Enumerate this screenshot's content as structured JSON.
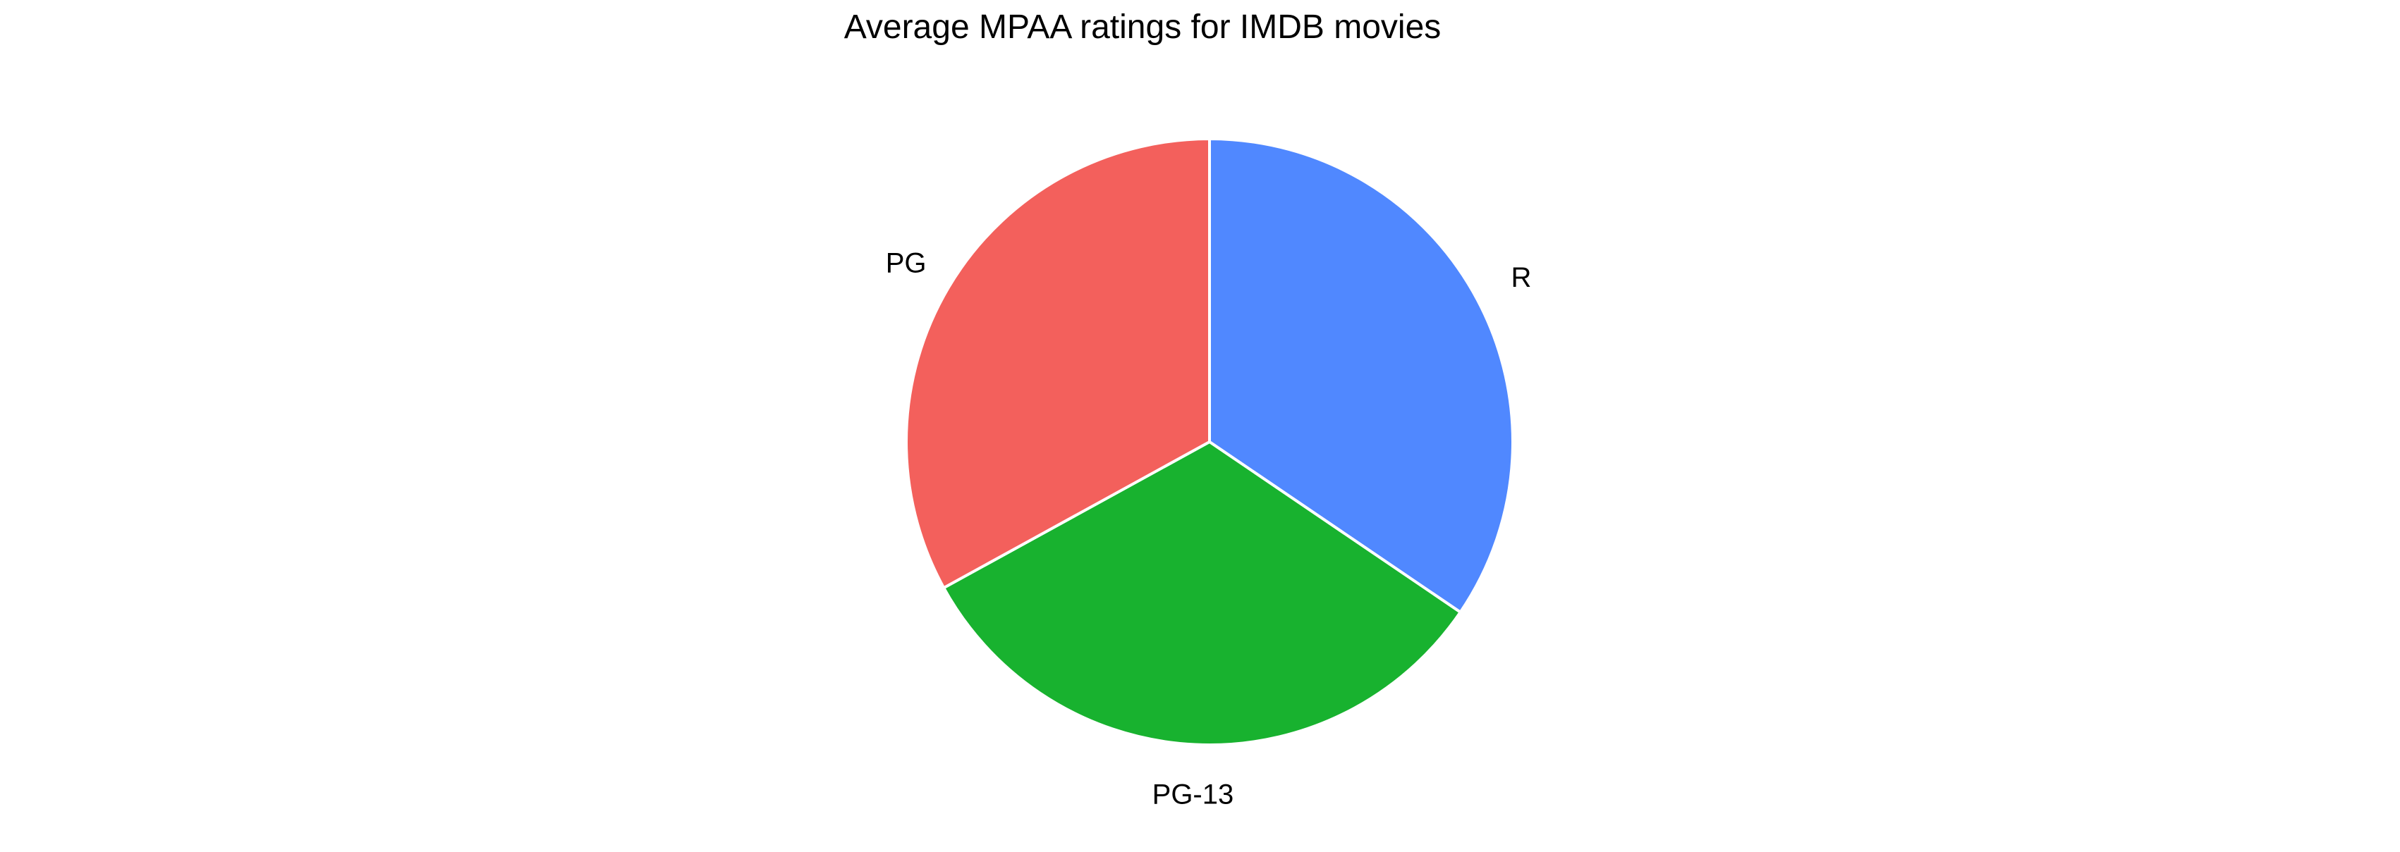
{
  "chart_data": {
    "type": "pie",
    "title": "Average MPAA ratings for IMDB movies",
    "categories": [
      "R",
      "PG-13",
      "PG"
    ],
    "values": [
      6.9,
      6.5,
      6.6
    ],
    "colors": [
      "#5088ff",
      "#18b22f",
      "#f3605c"
    ],
    "start_angle": "top",
    "direction": "clockwise",
    "legend": "none"
  }
}
